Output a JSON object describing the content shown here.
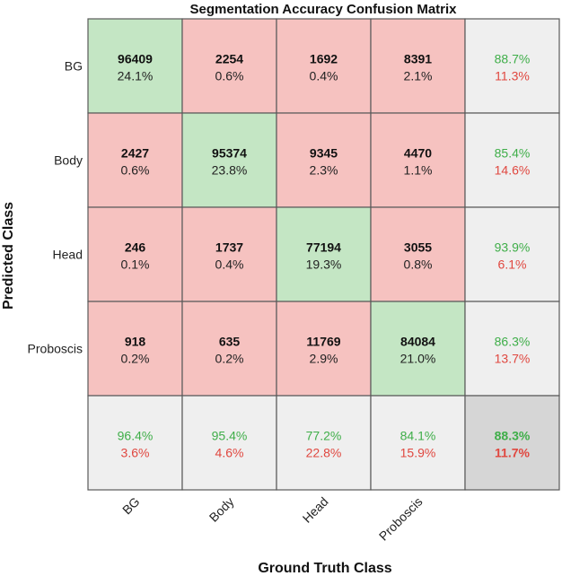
{
  "chart_data": {
    "type": "heatmap",
    "title": "Segmentation Accuracy Confusion Matrix",
    "xlabel": "Ground Truth Class",
    "ylabel": "Predicted Class",
    "classes": [
      "BG",
      "Body",
      "Head",
      "Proboscis"
    ],
    "counts": [
      [
        96409,
        2254,
        1692,
        8391
      ],
      [
        2427,
        95374,
        9345,
        4470
      ],
      [
        246,
        1737,
        77194,
        3055
      ],
      [
        918,
        635,
        11769,
        84084
      ]
    ],
    "percent_of_total": [
      [
        "24.1%",
        "0.6%",
        "0.4%",
        "2.1%"
      ],
      [
        "0.6%",
        "23.8%",
        "2.3%",
        "1.1%"
      ],
      [
        "0.1%",
        "0.4%",
        "19.3%",
        "0.8%"
      ],
      [
        "0.2%",
        "0.2%",
        "2.9%",
        "21.0%"
      ]
    ],
    "row_summary": [
      {
        "correct": "88.7%",
        "incorrect": "11.3%"
      },
      {
        "correct": "85.4%",
        "incorrect": "14.6%"
      },
      {
        "correct": "93.9%",
        "incorrect": "6.1%"
      },
      {
        "correct": "86.3%",
        "incorrect": "13.7%"
      }
    ],
    "col_summary": [
      {
        "correct": "96.4%",
        "incorrect": "3.6%"
      },
      {
        "correct": "95.4%",
        "incorrect": "4.6%"
      },
      {
        "correct": "77.2%",
        "incorrect": "22.8%"
      },
      {
        "correct": "84.1%",
        "incorrect": "15.9%"
      }
    ],
    "overall": {
      "correct": "88.3%",
      "incorrect": "11.7%"
    },
    "colors": {
      "diagonal": "#c4e6c4",
      "off_diagonal": "#f6c2c0",
      "summary": "#efefef",
      "overall": "#d6d6d6",
      "correct_text": "#3fae49",
      "incorrect_text": "#e0473f"
    }
  }
}
